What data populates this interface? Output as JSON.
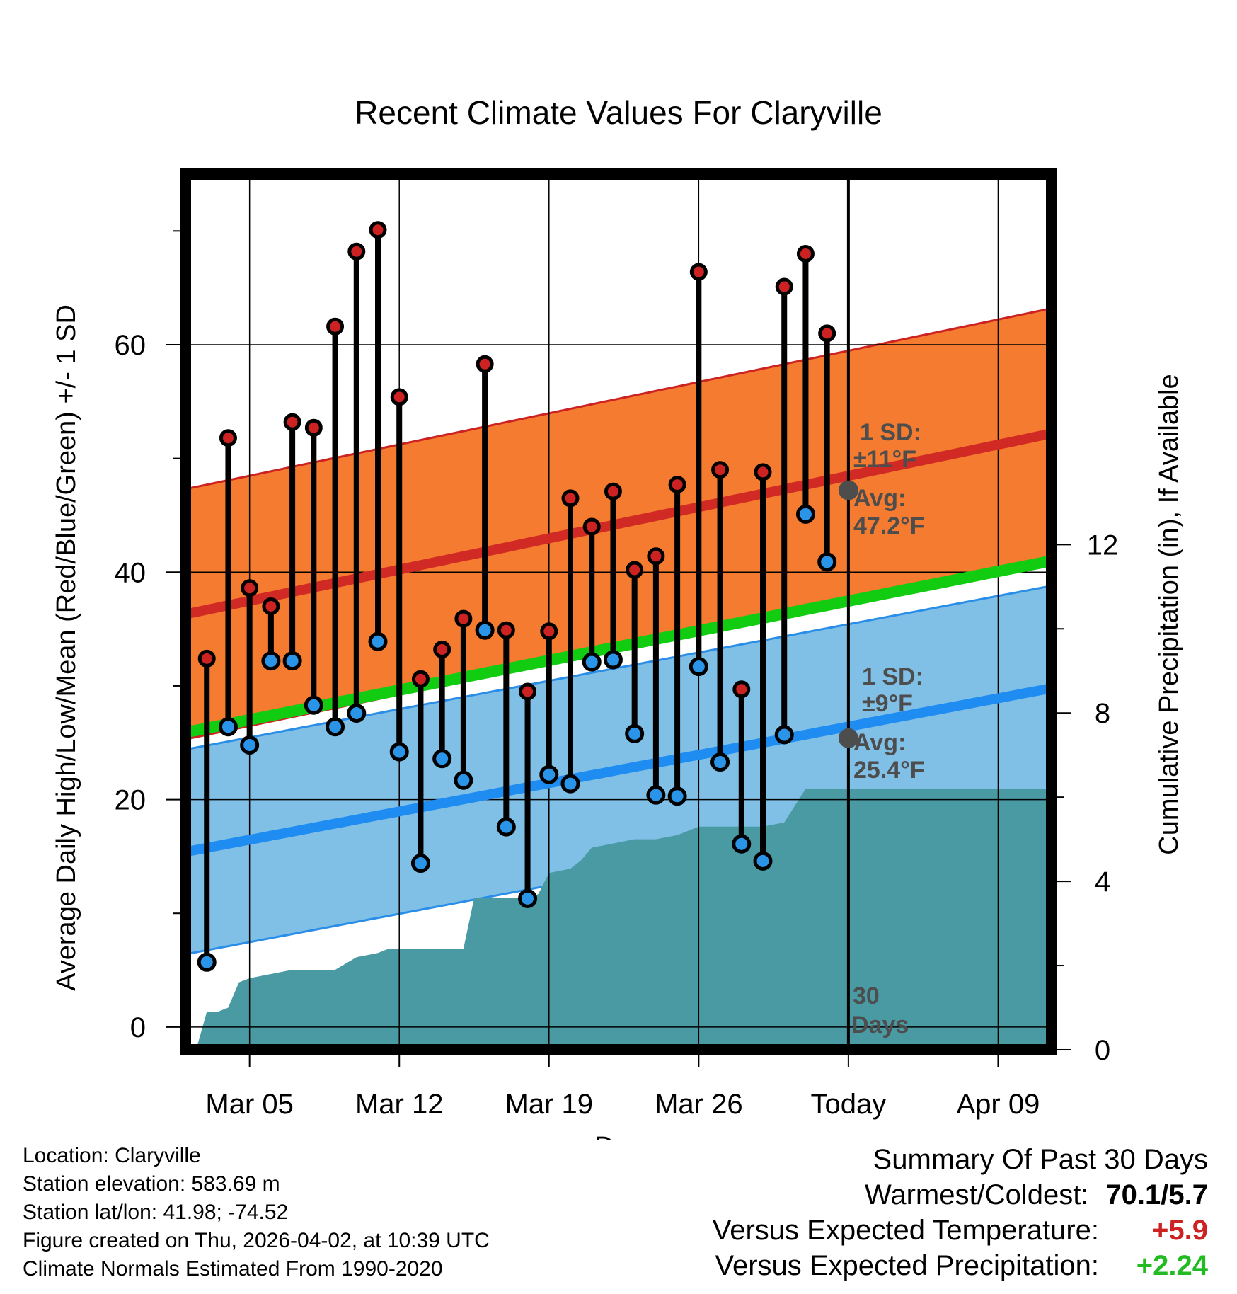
{
  "chart_data": {
    "type": "line",
    "title": "Recent Climate Values For Claryville",
    "xlabel": "Day",
    "ylabel_left": "Average Daily High/Low/Mean (Red/Blue/Green) +/- 1 SD",
    "ylabel_right": "Cumulative Precipitation (in), If Available",
    "x_range_days": [
      0,
      40.5
    ],
    "today_day": 31,
    "y_left_range": [
      -2,
      75
    ],
    "y_left_ticks": [
      0,
      20,
      40,
      60
    ],
    "y_right_range": [
      0,
      20.8
    ],
    "y_right_ticks": [
      0,
      4,
      8,
      12
    ],
    "x_ticks": [
      {
        "day": 3,
        "label": "Mar 05"
      },
      {
        "day": 10,
        "label": "Mar 12"
      },
      {
        "day": 17,
        "label": "Mar 19"
      },
      {
        "day": 24,
        "label": "Mar 26"
      },
      {
        "day": 31,
        "label": "Today"
      },
      {
        "day": 38,
        "label": "Apr 09"
      }
    ],
    "normal_high": {
      "start": 36.3,
      "end": 52.2,
      "sd": 11
    },
    "normal_low": {
      "start": 15.4,
      "end": 29.8,
      "sd": 9
    },
    "normal_mean": {
      "start": 25.9,
      "end": 41.0
    },
    "daily": {
      "day": [
        1,
        2,
        3,
        4,
        5,
        6,
        7,
        8,
        9,
        10,
        11,
        12,
        13,
        14,
        15,
        16,
        17,
        18,
        19,
        20,
        21,
        22,
        23,
        24,
        25,
        26,
        27,
        28,
        29,
        30
      ],
      "high": [
        32.4,
        51.8,
        38.6,
        37.0,
        53.2,
        52.7,
        61.6,
        68.2,
        70.1,
        55.4,
        30.6,
        33.2,
        35.9,
        58.3,
        34.9,
        29.5,
        34.8,
        46.5,
        44.0,
        47.1,
        40.2,
        41.4,
        47.7,
        66.4,
        49.0,
        29.7,
        48.8,
        65.1,
        68.0,
        61.0
      ],
      "low": [
        5.7,
        26.4,
        24.8,
        32.2,
        32.2,
        28.3,
        26.4,
        27.6,
        33.9,
        24.2,
        14.4,
        23.6,
        21.7,
        34.9,
        17.6,
        11.3,
        22.2,
        21.4,
        32.1,
        32.3,
        25.8,
        20.4,
        20.3,
        31.7,
        23.3,
        16.1,
        14.6,
        25.7,
        45.1,
        40.9
      ]
    },
    "precip_cumulative": {
      "day": [
        0.5,
        1,
        1.5,
        2,
        2.5,
        3,
        4,
        5,
        6,
        7,
        8,
        9,
        9.5,
        10,
        11,
        12,
        13,
        13.5,
        14,
        15,
        16,
        16.5,
        17,
        18,
        18.5,
        19,
        20,
        21,
        21.5,
        22,
        23,
        24,
        25,
        26,
        26.5,
        27,
        28,
        29,
        29.5,
        30,
        31,
        32,
        33,
        34,
        35,
        36,
        37,
        38,
        39,
        40.5
      ],
      "value": [
        0,
        0.9,
        0.9,
        1.0,
        1.6,
        1.7,
        1.8,
        1.9,
        1.9,
        1.9,
        2.2,
        2.3,
        2.4,
        2.4,
        2.4,
        2.4,
        2.4,
        3.6,
        3.6,
        3.6,
        3.6,
        3.7,
        4.2,
        4.3,
        4.5,
        4.8,
        4.9,
        5.0,
        5.0,
        5.0,
        5.1,
        5.3,
        5.3,
        5.3,
        5.3,
        5.3,
        5.4,
        6.2,
        6.2,
        6.2,
        6.2,
        6.2,
        6.2,
        6.2,
        6.2,
        6.2,
        6.2,
        6.2,
        6.2,
        6.2
      ]
    },
    "annotations": {
      "high_sd": "1 SD:",
      "high_sd_value": "±11°F",
      "high_avg": "Avg:",
      "high_avg_value": "47.2°F",
      "low_sd": "1 SD:",
      "low_sd_value": "±9°F",
      "low_avg": "Avg:",
      "low_avg_value": "25.4°F",
      "days_count": "30",
      "days_word": "Days",
      "today_high_avg": 47.2,
      "today_low_avg": 25.4
    },
    "colors": {
      "high_band": "#f47b2f",
      "high_line": "#d12a24",
      "high_edge": "#cc2222",
      "low_band": "#80c0e6",
      "low_line": "#1e8cf0",
      "low_edge": "#2a8ee8",
      "mean_line": "#11cc11",
      "precip": "#4a9aa4",
      "high_dot": "#cc2222",
      "low_dot": "#2a95e8",
      "avg_marker": "#4d4d4d"
    }
  },
  "info": {
    "location": "Location: Claryville",
    "elevation": "Station elevation: 583.69 m",
    "latlon": "Station lat/lon: 41.98; -74.52",
    "created": "Figure created on Thu, 2026-04-02, at 10:39 UTC",
    "normals": "Climate Normals Estimated From 1990-2020"
  },
  "summary": {
    "title": "Summary Of Past 30 Days",
    "warm_cold_label": "Warmest/Coldest:",
    "warm_cold_value": "70.1/5.7",
    "temp_label": "Versus Expected Temperature:",
    "temp_value": "+5.9",
    "precip_label": "Versus Expected Precipitation:",
    "precip_value": "+2.24"
  }
}
